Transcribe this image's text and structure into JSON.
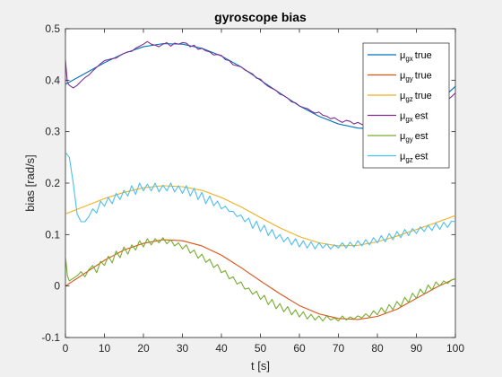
{
  "chart_data": {
    "type": "line",
    "title": "gyroscope bias",
    "xlabel": "t [s]",
    "ylabel": "bias [rad/s]",
    "xlim": [
      0,
      100
    ],
    "ylim": [
      -0.1,
      0.5
    ],
    "xticks": [
      0,
      10,
      20,
      30,
      40,
      50,
      60,
      70,
      80,
      90,
      100
    ],
    "yticks": [
      -0.1,
      0,
      0.1,
      0.2,
      0.3,
      0.4,
      0.5
    ],
    "xtick_labels": [
      "0",
      "10",
      "20",
      "30",
      "40",
      "50",
      "60",
      "70",
      "80",
      "90",
      "100"
    ],
    "ytick_labels": [
      "-0.1",
      "0",
      "0.1",
      "0.2",
      "0.3",
      "0.4",
      "0.5"
    ],
    "grid": false,
    "legend_position": "top-right",
    "series": [
      {
        "name": "μgx true",
        "legend": {
          "sym": "μ",
          "sub": "gx",
          "word": "true"
        },
        "color": "#0072BD",
        "x": [
          0,
          5,
          10,
          15,
          20,
          25,
          30,
          35,
          40,
          45,
          50,
          55,
          60,
          65,
          70,
          75,
          80,
          85,
          90,
          95,
          100
        ],
        "y": [
          0.392,
          0.413,
          0.434,
          0.452,
          0.465,
          0.471,
          0.47,
          0.462,
          0.447,
          0.426,
          0.4,
          0.375,
          0.35,
          0.33,
          0.315,
          0.307,
          0.305,
          0.312,
          0.328,
          0.353,
          0.388
        ]
      },
      {
        "name": "μgy true",
        "legend": {
          "sym": "μ",
          "sub": "gy",
          "word": "true"
        },
        "color": "#D95319",
        "x": [
          0,
          5,
          10,
          15,
          20,
          25,
          30,
          35,
          40,
          45,
          50,
          55,
          60,
          65,
          70,
          75,
          80,
          85,
          90,
          95,
          100
        ],
        "y": [
          0.0,
          0.025,
          0.05,
          0.07,
          0.083,
          0.09,
          0.088,
          0.078,
          0.06,
          0.036,
          0.01,
          -0.015,
          -0.038,
          -0.054,
          -0.063,
          -0.065,
          -0.059,
          -0.045,
          -0.024,
          -0.003,
          0.015
        ]
      },
      {
        "name": "μgz true",
        "legend": {
          "sym": "μ",
          "sub": "gz",
          "word": "true"
        },
        "color": "#EDB120",
        "x": [
          0,
          5,
          10,
          15,
          20,
          25,
          30,
          35,
          40,
          45,
          50,
          55,
          60,
          65,
          70,
          75,
          80,
          85,
          90,
          95,
          100
        ],
        "y": [
          0.14,
          0.155,
          0.17,
          0.182,
          0.191,
          0.195,
          0.193,
          0.186,
          0.172,
          0.154,
          0.133,
          0.113,
          0.096,
          0.084,
          0.078,
          0.079,
          0.086,
          0.097,
          0.11,
          0.123,
          0.137
        ]
      },
      {
        "name": "μgx est",
        "legend": {
          "sym": "μ",
          "sub": "gx",
          "word": "est"
        },
        "color": "#7E2F8E",
        "x": [
          0,
          0.5,
          1,
          2,
          3,
          4,
          5,
          6,
          7,
          8,
          9,
          10,
          11,
          12,
          13,
          14,
          15,
          16,
          17,
          18,
          19,
          20,
          21,
          22,
          23,
          24,
          25,
          26,
          27,
          28,
          29,
          30,
          31,
          32,
          33,
          34,
          35,
          36,
          37,
          38,
          39,
          40,
          41,
          42,
          43,
          44,
          45,
          46,
          47,
          48,
          49,
          50,
          51,
          52,
          53,
          54,
          55,
          56,
          57,
          58,
          59,
          60,
          61,
          62,
          63,
          64,
          65,
          66,
          67,
          68,
          69,
          70,
          71,
          72,
          73,
          74,
          75,
          76,
          77,
          78,
          79,
          80,
          81,
          82,
          83,
          84,
          85,
          86,
          87,
          88,
          89,
          90,
          91,
          92,
          93,
          94,
          95,
          96,
          97,
          98,
          99,
          100
        ],
        "y": [
          0.44,
          0.395,
          0.39,
          0.385,
          0.39,
          0.398,
          0.405,
          0.41,
          0.418,
          0.425,
          0.432,
          0.438,
          0.44,
          0.442,
          0.443,
          0.448,
          0.452,
          0.455,
          0.456,
          0.462,
          0.466,
          0.47,
          0.475,
          0.47,
          0.468,
          0.465,
          0.47,
          0.473,
          0.466,
          0.472,
          0.47,
          0.473,
          0.472,
          0.465,
          0.468,
          0.46,
          0.462,
          0.457,
          0.455,
          0.449,
          0.45,
          0.448,
          0.44,
          0.438,
          0.43,
          0.428,
          0.426,
          0.42,
          0.416,
          0.412,
          0.404,
          0.402,
          0.394,
          0.388,
          0.384,
          0.38,
          0.373,
          0.37,
          0.365,
          0.358,
          0.356,
          0.35,
          0.347,
          0.345,
          0.34,
          0.336,
          0.338,
          0.332,
          0.33,
          0.325,
          0.327,
          0.322,
          0.318,
          0.322,
          0.32,
          0.315,
          0.318,
          0.314,
          0.312,
          0.31,
          0.306,
          0.308,
          0.303,
          0.3,
          0.305,
          0.3,
          0.31,
          0.306,
          0.31,
          0.315,
          0.312,
          0.32,
          0.325,
          0.325,
          0.332,
          0.338,
          0.345,
          0.348,
          0.356,
          0.362,
          0.368,
          0.375
        ]
      },
      {
        "name": "μgy est",
        "legend": {
          "sym": "μ",
          "sub": "gy",
          "word": "est"
        },
        "color": "#77AC30",
        "x": [
          0,
          0.5,
          1,
          2,
          3,
          4,
          5,
          6,
          7,
          8,
          9,
          10,
          11,
          12,
          13,
          14,
          15,
          16,
          17,
          18,
          19,
          20,
          21,
          22,
          23,
          24,
          25,
          26,
          27,
          28,
          29,
          30,
          31,
          32,
          33,
          34,
          35,
          36,
          37,
          38,
          39,
          40,
          41,
          42,
          43,
          44,
          45,
          46,
          47,
          48,
          49,
          50,
          51,
          52,
          53,
          54,
          55,
          56,
          57,
          58,
          59,
          60,
          61,
          62,
          63,
          64,
          65,
          66,
          67,
          68,
          69,
          70,
          71,
          72,
          73,
          74,
          75,
          76,
          77,
          78,
          79,
          80,
          81,
          82,
          83,
          84,
          85,
          86,
          87,
          88,
          89,
          90,
          91,
          92,
          93,
          94,
          95,
          96,
          97,
          98,
          99,
          100
        ],
        "y": [
          0.06,
          0.02,
          0.01,
          0.015,
          0.02,
          0.028,
          0.018,
          0.032,
          0.04,
          0.026,
          0.048,
          0.04,
          0.058,
          0.045,
          0.068,
          0.055,
          0.076,
          0.062,
          0.08,
          0.07,
          0.088,
          0.076,
          0.092,
          0.08,
          0.092,
          0.084,
          0.094,
          0.082,
          0.09,
          0.078,
          0.084,
          0.072,
          0.08,
          0.064,
          0.07,
          0.054,
          0.062,
          0.046,
          0.052,
          0.036,
          0.042,
          0.026,
          0.03,
          0.014,
          0.018,
          0.004,
          0.008,
          -0.006,
          -0.004,
          -0.016,
          -0.01,
          -0.026,
          -0.018,
          -0.036,
          -0.026,
          -0.044,
          -0.034,
          -0.05,
          -0.04,
          -0.056,
          -0.046,
          -0.06,
          -0.05,
          -0.064,
          -0.055,
          -0.066,
          -0.058,
          -0.068,
          -0.058,
          -0.066,
          -0.062,
          -0.068,
          -0.058,
          -0.066,
          -0.06,
          -0.064,
          -0.058,
          -0.062,
          -0.054,
          -0.06,
          -0.048,
          -0.056,
          -0.042,
          -0.052,
          -0.036,
          -0.046,
          -0.03,
          -0.04,
          -0.022,
          -0.032,
          -0.014,
          -0.024,
          -0.006,
          -0.016,
          0.002,
          -0.008,
          0.008,
          0.0,
          0.01,
          0.005,
          0.012,
          0.014
        ]
      },
      {
        "name": "μgz est",
        "legend": {
          "sym": "μ",
          "sub": "gz",
          "word": "est"
        },
        "color": "#4DBEEE",
        "x": [
          0,
          0.5,
          1,
          2,
          3,
          4,
          5,
          6,
          7,
          8,
          9,
          10,
          11,
          12,
          13,
          14,
          15,
          16,
          17,
          18,
          19,
          20,
          21,
          22,
          23,
          24,
          25,
          26,
          27,
          28,
          29,
          30,
          31,
          32,
          33,
          34,
          35,
          36,
          37,
          38,
          39,
          40,
          41,
          42,
          43,
          44,
          45,
          46,
          47,
          48,
          49,
          50,
          51,
          52,
          53,
          54,
          55,
          56,
          57,
          58,
          59,
          60,
          61,
          62,
          63,
          64,
          65,
          66,
          67,
          68,
          69,
          70,
          71,
          72,
          73,
          74,
          75,
          76,
          77,
          78,
          79,
          80,
          81,
          82,
          83,
          84,
          85,
          86,
          87,
          88,
          89,
          90,
          91,
          92,
          93,
          94,
          95,
          96,
          97,
          98,
          99,
          100
        ],
        "y": [
          0.26,
          0.255,
          0.25,
          0.2,
          0.14,
          0.125,
          0.125,
          0.135,
          0.15,
          0.142,
          0.165,
          0.155,
          0.172,
          0.16,
          0.18,
          0.168,
          0.186,
          0.175,
          0.195,
          0.178,
          0.2,
          0.185,
          0.198,
          0.185,
          0.2,
          0.183,
          0.196,
          0.185,
          0.2,
          0.183,
          0.195,
          0.18,
          0.195,
          0.175,
          0.19,
          0.168,
          0.182,
          0.16,
          0.175,
          0.156,
          0.165,
          0.15,
          0.155,
          0.145,
          0.145,
          0.135,
          0.138,
          0.125,
          0.132,
          0.112,
          0.126,
          0.106,
          0.118,
          0.098,
          0.11,
          0.092,
          0.1,
          0.086,
          0.095,
          0.08,
          0.092,
          0.076,
          0.088,
          0.074,
          0.086,
          0.072,
          0.084,
          0.074,
          0.082,
          0.072,
          0.08,
          0.074,
          0.084,
          0.074,
          0.085,
          0.076,
          0.088,
          0.078,
          0.09,
          0.08,
          0.094,
          0.084,
          0.098,
          0.086,
          0.102,
          0.09,
          0.106,
          0.094,
          0.11,
          0.098,
          0.112,
          0.102,
          0.115,
          0.106,
          0.118,
          0.108,
          0.122,
          0.11,
          0.124,
          0.114,
          0.126,
          0.125
        ]
      }
    ]
  }
}
